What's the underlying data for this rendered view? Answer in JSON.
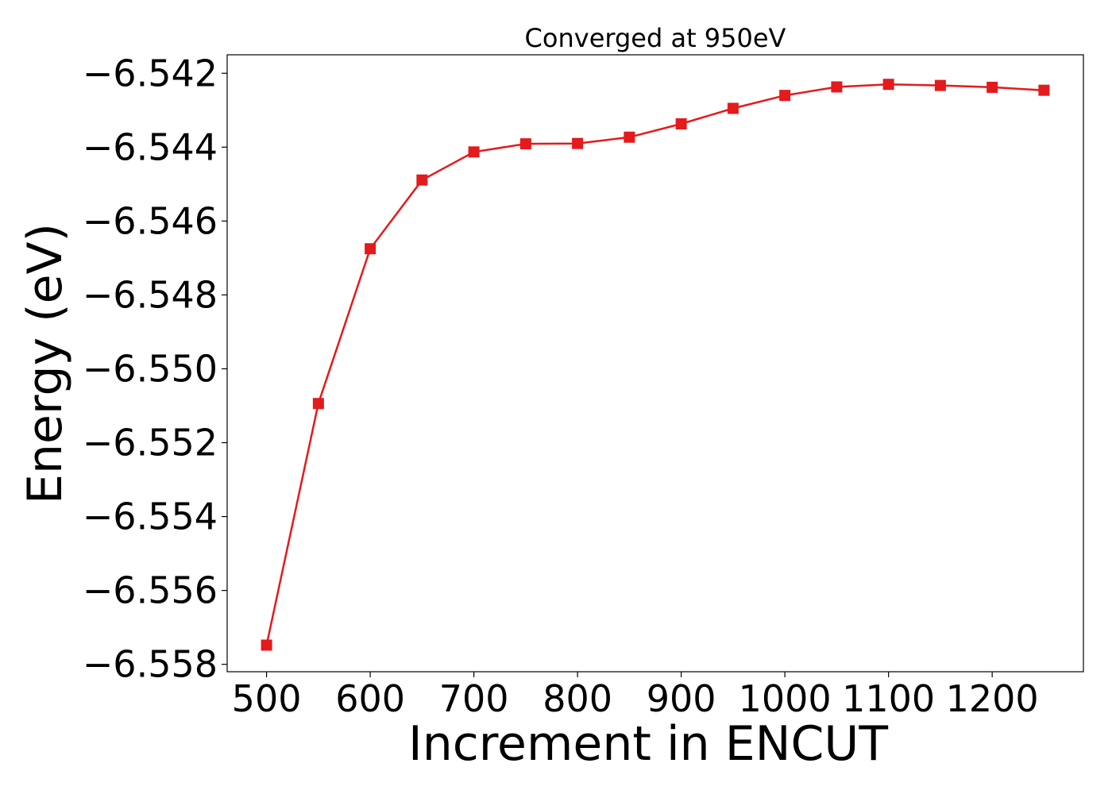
{
  "chart_data": {
    "type": "line",
    "title": "Converged at 950eV",
    "xlabel": "Increment in ENCUT",
    "ylabel": "Energy (eV)",
    "xlim": [
      462,
      1288
    ],
    "ylim": [
      -6.5582,
      -6.5415
    ],
    "x_ticks": [
      500,
      600,
      700,
      800,
      900,
      1000,
      1100,
      1200
    ],
    "x_tick_labels": [
      "500",
      "600",
      "700",
      "800",
      "900",
      "1000",
      "1100",
      "1200"
    ],
    "y_ticks": [
      -6.542,
      -6.544,
      -6.546,
      -6.548,
      -6.55,
      -6.552,
      -6.554,
      -6.556,
      -6.558
    ],
    "y_tick_labels": [
      "−6.542",
      "−6.544",
      "−6.546",
      "−6.548",
      "−6.550",
      "−6.552",
      "−6.554",
      "−6.556",
      "−6.558"
    ],
    "grid": false,
    "series": [
      {
        "color": "#e41a1c",
        "marker": "square",
        "x": [
          500,
          550,
          600,
          650,
          700,
          750,
          800,
          850,
          900,
          950,
          1000,
          1050,
          1100,
          1150,
          1200,
          1250
        ],
        "y": [
          -6.55748,
          -6.55094,
          -6.54675,
          -6.54489,
          -6.54413,
          -6.54391,
          -6.5439,
          -6.54373,
          -6.54337,
          -6.54295,
          -6.5426,
          -6.54237,
          -6.5423,
          -6.54233,
          -6.54238,
          -6.54246
        ]
      }
    ]
  }
}
